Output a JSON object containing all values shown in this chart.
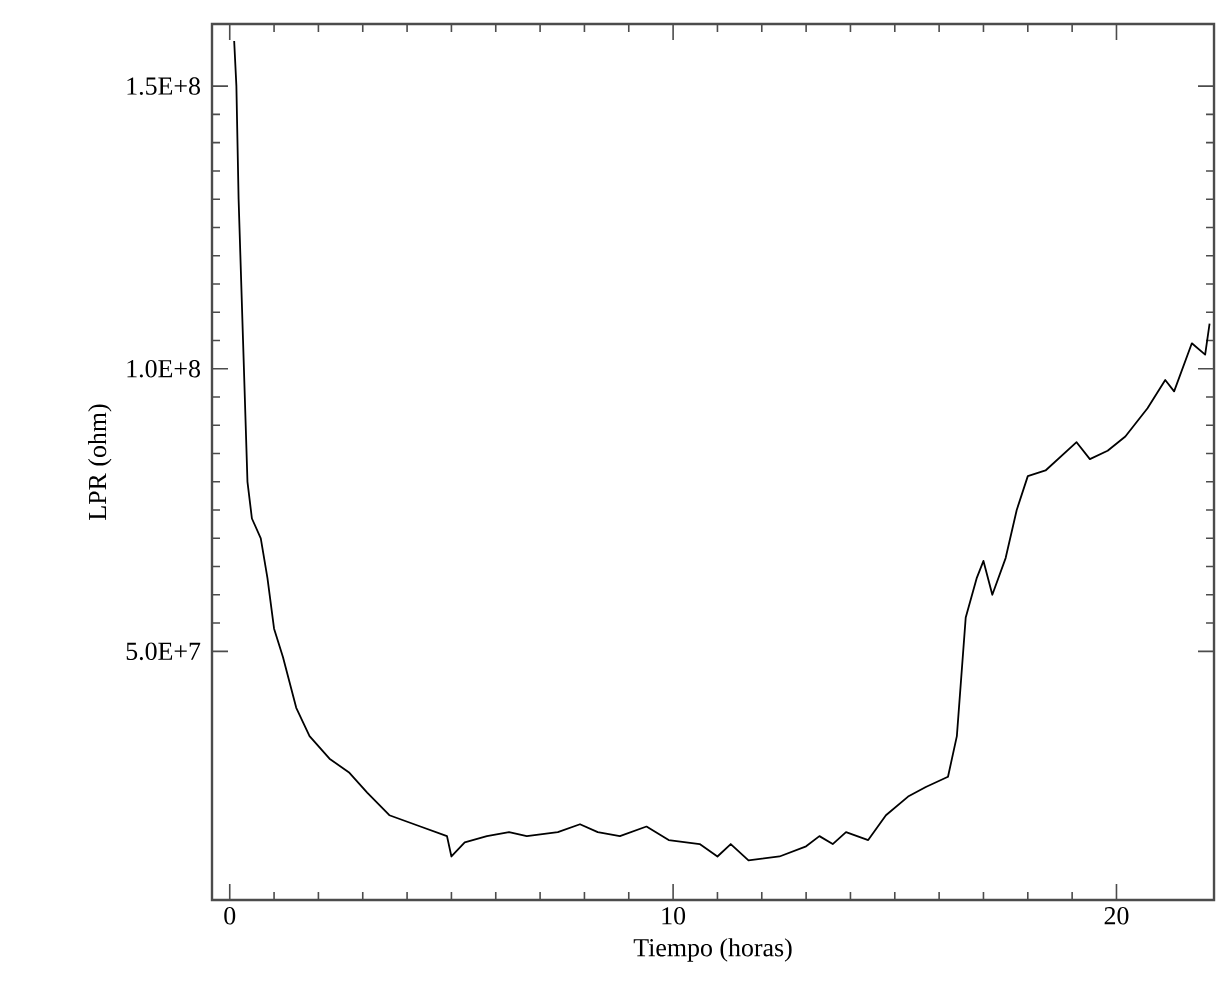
{
  "chart_data": {
    "type": "line",
    "xlabel": "Tiempo (horas)",
    "ylabel": "LPR (ohm)",
    "xlim": [
      -0.4,
      22.2
    ],
    "ylim": [
      6000000,
      161000000
    ],
    "xticks": [
      0,
      10,
      20
    ],
    "yticks": [
      {
        "value": 50000000,
        "label": "5.0E+7"
      },
      {
        "value": 100000000,
        "label": "1.0E+8"
      },
      {
        "value": 150000000,
        "label": "1.5E+8"
      }
    ],
    "grid": false,
    "series": [
      {
        "color": "#000000",
        "x": [
          0.1,
          0.15,
          0.2,
          0.3,
          0.4,
          0.5,
          0.7,
          0.85,
          1.0,
          1.2,
          1.5,
          1.8,
          2.25,
          2.7,
          3.1,
          3.6,
          4.3,
          4.9,
          5.0,
          5.3,
          5.8,
          6.3,
          6.7,
          7.4,
          7.9,
          8.3,
          8.8,
          9.4,
          9.9,
          10.6,
          11.0,
          11.3,
          11.7,
          12.4,
          13.0,
          13.3,
          13.6,
          13.9,
          14.4,
          14.8,
          15.3,
          15.7,
          16.2,
          16.4,
          16.6,
          16.85,
          17.0,
          17.2,
          17.5,
          17.75,
          18.0,
          18.4,
          19.1,
          19.4,
          19.8,
          20.2,
          20.7,
          21.1,
          21.3,
          21.7,
          22.0,
          22.1
        ],
        "values": [
          158000000,
          150000000,
          130000000,
          105000000,
          80000000,
          73500000,
          70000000,
          63000000,
          54000000,
          49000000,
          40000000,
          35000000,
          31000000,
          28500000,
          25000000,
          21000000,
          19000000,
          17300000,
          13700000,
          16200000,
          17300000,
          18000000,
          17300000,
          18000000,
          19400000,
          18000000,
          17300000,
          19000000,
          16600000,
          15900000,
          13700000,
          15900000,
          13000000,
          13700000,
          15500000,
          17300000,
          15900000,
          18000000,
          16600000,
          21000000,
          24300000,
          26000000,
          27800000,
          35000000,
          56000000,
          63000000,
          66000000,
          60000000,
          66500000,
          75000000,
          81000000,
          82000000,
          87000000,
          84000000,
          85500000,
          88000000,
          93000000,
          98000000,
          96000000,
          104500000,
          102500000,
          108000000
        ]
      }
    ]
  }
}
